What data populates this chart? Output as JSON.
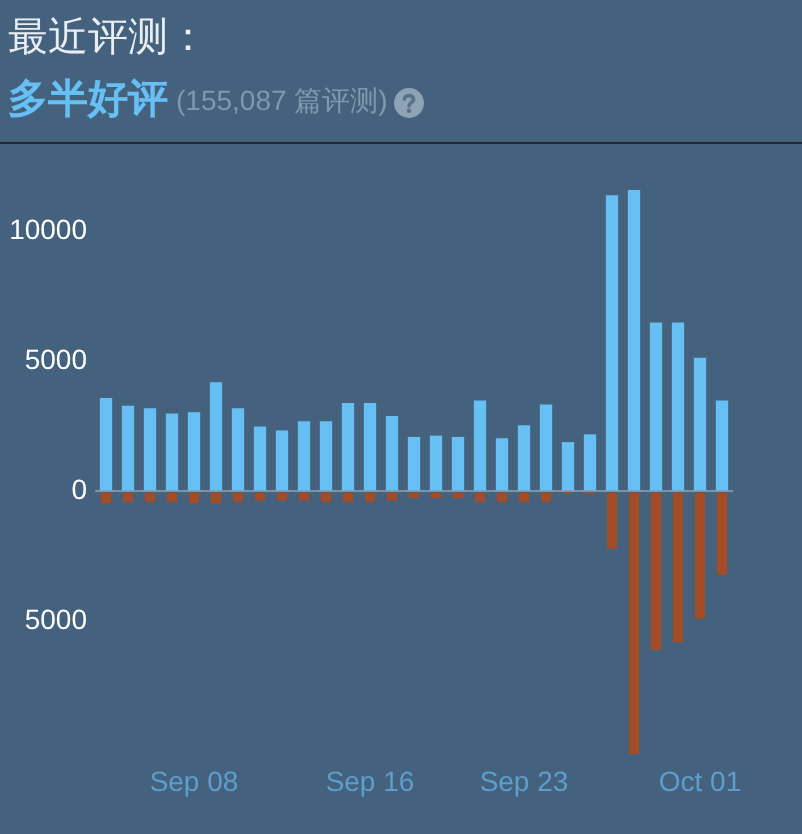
{
  "chart_data": {
    "type": "bar",
    "title": "最近评测：",
    "subtitle": "多半好评",
    "annotations": [
      "(155,087 篇评测)"
    ],
    "categories": [
      null,
      null,
      null,
      null,
      "Sep 08",
      null,
      null,
      null,
      null,
      null,
      null,
      null,
      "Sep 16",
      null,
      null,
      null,
      null,
      null,
      null,
      "Sep 23",
      null,
      null,
      null,
      null,
      null,
      null,
      null,
      "Oct 01",
      null
    ],
    "series": [
      {
        "color": "#66c0f4",
        "values": [
          3600,
          3300,
          3200,
          3000,
          3050,
          4200,
          3200,
          2500,
          2350,
          2700,
          2700,
          3400,
          3400,
          2900,
          2100,
          2150,
          2100,
          3500,
          2050,
          2550,
          3350,
          1900,
          2200,
          11400,
          11600,
          6500,
          6500,
          5150,
          3500
        ]
      },
      {
        "color": "#a34c25",
        "values": [
          -450,
          -400,
          -400,
          -400,
          -450,
          -450,
          -400,
          -350,
          -350,
          -350,
          -400,
          -400,
          -400,
          -350,
          -250,
          -250,
          -250,
          -400,
          -400,
          -400,
          -400,
          -100,
          -100,
          -2200,
          -10100,
          -6100,
          -5800,
          -4900,
          -3200
        ]
      }
    ],
    "stacked": true,
    "ylim": [
      -10100,
      11600
    ],
    "yticks": [
      {
        "value": -5000,
        "label": "5000"
      },
      0,
      5000,
      10000
    ]
  }
}
